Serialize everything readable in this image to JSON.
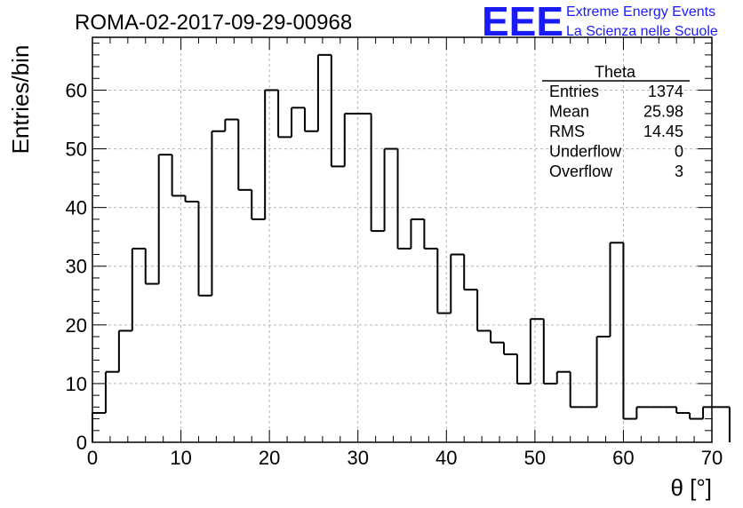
{
  "header": {
    "run_title": "ROMA-02-2017-09-29-00968"
  },
  "logo": {
    "mark": "EEE",
    "line1": "Extreme Energy Events",
    "line2": "La Scienza nelle Scuole",
    "color": "#1a1aff"
  },
  "stats_box": {
    "name": "Theta",
    "rows": [
      {
        "label": "Entries",
        "value": "1374"
      },
      {
        "label": "Mean",
        "value": "25.98"
      },
      {
        "label": "RMS",
        "value": "14.45"
      },
      {
        "label": "Underflow",
        "value": "0"
      },
      {
        "label": "Overflow",
        "value": "3"
      }
    ]
  },
  "chart_data": {
    "type": "bar",
    "style": "step-histogram",
    "title": "ROMA-02-2017-09-29-00968",
    "xlabel": "θ [°]",
    "ylabel": "Entries/bin",
    "xlim": [
      0,
      70
    ],
    "ylim": [
      0,
      69
    ],
    "grid": true,
    "bin_edges_start": 0,
    "bin_width": 1.5,
    "values": [
      5,
      12,
      19,
      33,
      27,
      49,
      42,
      41,
      25,
      53,
      55,
      43,
      38,
      60,
      52,
      57,
      53,
      66,
      47,
      56,
      56,
      36,
      50,
      33,
      38,
      33,
      22,
      32,
      26,
      19,
      17,
      15,
      10,
      21,
      10,
      12,
      6,
      6,
      18,
      34,
      4,
      6,
      6,
      6,
      5,
      4,
      6,
      6
    ],
    "x_ticks": [
      0,
      10,
      20,
      30,
      40,
      50,
      60,
      70
    ],
    "x_tick_labels": [
      "0",
      "10",
      "20",
      "30",
      "40",
      "50",
      "60",
      "70"
    ],
    "y_ticks": [
      0,
      10,
      20,
      30,
      40,
      50,
      60
    ],
    "y_tick_labels": [
      "0",
      "10",
      "20",
      "30",
      "40",
      "50",
      "60"
    ]
  }
}
